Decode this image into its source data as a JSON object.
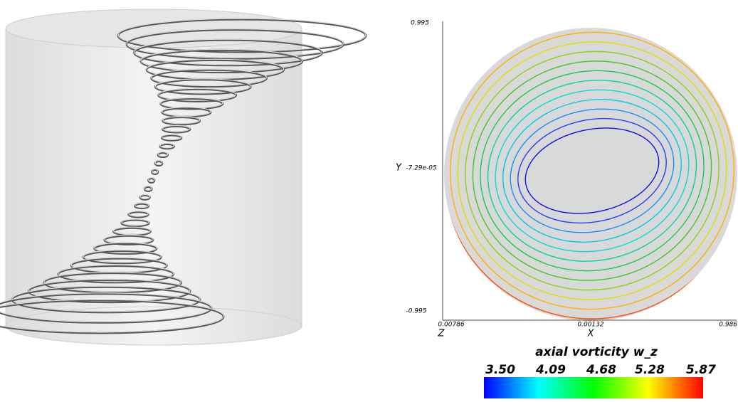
{
  "contour_plot": {
    "y_axis_label": "Y",
    "x_axis_label": "X",
    "z_label": "Z",
    "y_ticks": [
      "0.995",
      "-7.29e-05",
      "-0.995"
    ],
    "x_ticks": [
      "0.00786",
      "0.00132",
      "0.986"
    ]
  },
  "colorbar": {
    "title": "axial vorticity w_z",
    "ticks": [
      "3.50",
      "4.09",
      "4.68",
      "5.28",
      "5.87"
    ]
  }
}
